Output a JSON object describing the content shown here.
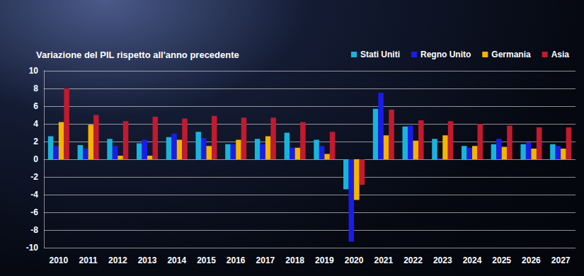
{
  "chart_data": {
    "type": "bar",
    "title": "Variazione del PIL rispetto all'anno precedente",
    "categories": [
      "2010",
      "2011",
      "2012",
      "2013",
      "2014",
      "2015",
      "2016",
      "2017",
      "2018",
      "2019",
      "2020",
      "2021",
      "2022",
      "2023",
      "2024",
      "2025",
      "2026",
      "2027"
    ],
    "series": [
      {
        "name": "Stati Uniti",
        "color": "#19b4dc",
        "values": [
          2.6,
          1.6,
          2.3,
          1.8,
          2.5,
          3.1,
          1.7,
          2.3,
          3.0,
          2.2,
          -3.4,
          5.7,
          3.7,
          2.3,
          1.5,
          1.7,
          1.7,
          1.7
        ]
      },
      {
        "name": "Regno Unito",
        "color": "#1c1ce8",
        "values": [
          1.5,
          1.2,
          1.5,
          2.2,
          2.9,
          2.4,
          1.7,
          1.7,
          1.3,
          1.5,
          -9.3,
          7.5,
          3.8,
          0.1,
          1.3,
          2.3,
          1.9,
          1.5
        ]
      },
      {
        "name": "Germania",
        "color": "#f4b400",
        "values": [
          4.2,
          3.9,
          0.4,
          0.4,
          2.2,
          1.5,
          2.2,
          2.6,
          1.3,
          0.6,
          -4.6,
          2.7,
          2.1,
          2.7,
          1.5,
          1.4,
          1.2,
          1.2
        ]
      },
      {
        "name": "Asia",
        "color": "#c21a2e",
        "values": [
          8.0,
          5.0,
          4.3,
          4.8,
          4.6,
          4.9,
          4.7,
          4.7,
          4.2,
          3.1,
          -2.9,
          5.6,
          4.4,
          4.3,
          4.0,
          3.8,
          3.6,
          3.6
        ]
      }
    ],
    "ylim": [
      -10,
      10
    ],
    "yticks": [
      -10,
      -8,
      -6,
      -4,
      -2,
      0,
      2,
      4,
      6,
      8,
      10
    ],
    "grid": true,
    "legend": "top-right"
  }
}
